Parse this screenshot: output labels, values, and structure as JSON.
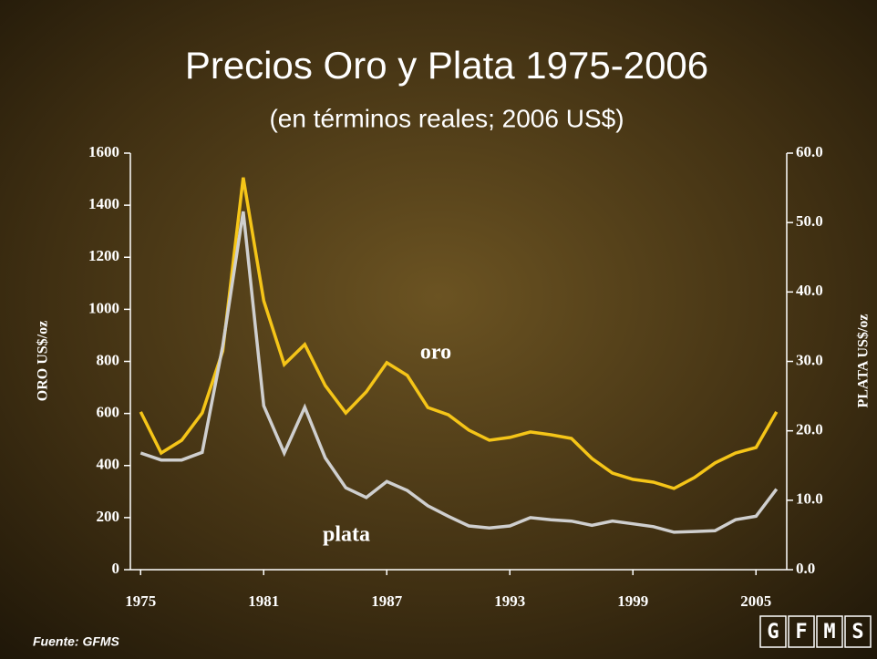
{
  "chart_data": {
    "type": "line",
    "title": "Precios Oro y Plata 1975-2006",
    "subtitle": "(en términos reales; 2006 US$)",
    "ylabel": "ORO US$/oz",
    "y2label": "PLATA US$/oz",
    "annotations": [
      {
        "text": "oro",
        "color": "#f5c518"
      },
      {
        "text": "plata",
        "color": "#d0d0d0"
      }
    ],
    "source": "Fuente: GFMS",
    "logo": [
      "G",
      "F",
      "M",
      "S"
    ],
    "x": [
      1975,
      1976,
      1977,
      1978,
      1979,
      1980,
      1981,
      1982,
      1983,
      1984,
      1985,
      1986,
      1987,
      1988,
      1989,
      1990,
      1991,
      1992,
      1993,
      1994,
      1995,
      1996,
      1997,
      1998,
      1999,
      2000,
      2001,
      2002,
      2003,
      2004,
      2005,
      2006
    ],
    "series": [
      {
        "name": "oro",
        "color": "#f5c518",
        "values": [
          606,
          448,
          497,
          602,
          840,
          1506,
          1033,
          788,
          865,
          707,
          602,
          683,
          795,
          746,
          623,
          595,
          536,
          497,
          508,
          529,
          518,
          504,
          427,
          371,
          347,
          336,
          312,
          354,
          410,
          448,
          469,
          606
        ]
      },
      {
        "name": "plata",
        "color": "#cfcfcf",
        "axis": "y2",
        "values": [
          16.8,
          15.8,
          15.8,
          16.9,
          32.2,
          51.6,
          23.6,
          16.8,
          23.4,
          16.1,
          11.8,
          10.4,
          12.7,
          11.4,
          9.2,
          7.7,
          6.3,
          6.0,
          6.3,
          7.5,
          7.2,
          7.0,
          6.4,
          7.0,
          6.6,
          6.2,
          5.4,
          5.5,
          5.6,
          7.2,
          7.7,
          11.6
        ]
      }
    ],
    "xlim": [
      1974.5,
      2006.5
    ],
    "xticks": [
      1975,
      1981,
      1987,
      1993,
      1999,
      2005
    ],
    "ylim": [
      0,
      1600
    ],
    "yticks": [
      0,
      200,
      400,
      600,
      800,
      1000,
      1200,
      1400,
      1600
    ],
    "y2lim": [
      0,
      60
    ],
    "y2ticks": [
      {
        "value": 0,
        "label": "0.0"
      },
      {
        "value": 10,
        "label": "10.0"
      },
      {
        "value": 20,
        "label": "20.0"
      },
      {
        "value": 30,
        "label": "30.0"
      },
      {
        "value": 40,
        "label": "40.0"
      },
      {
        "value": 50,
        "label": "50.0"
      },
      {
        "value": 60,
        "label": "60.0"
      }
    ]
  }
}
